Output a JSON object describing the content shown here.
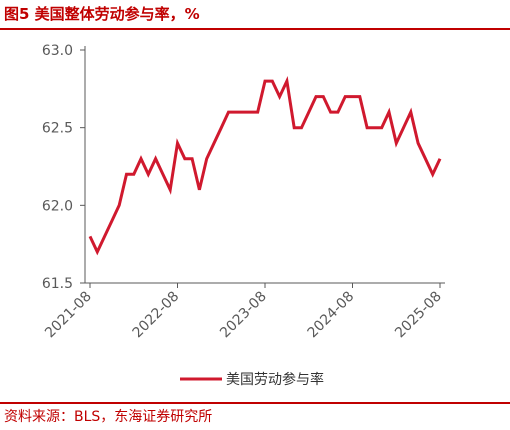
{
  "header": {
    "title": "图5  美国整体劳动参与率，%"
  },
  "footer": {
    "source": "资料来源：BLS，东海证券研究所"
  },
  "colors": {
    "accent": "#c00000",
    "series": "#d0192e",
    "axis": "#595959"
  },
  "chart_data": {
    "type": "line",
    "title": "图5  美国整体劳动参与率，%",
    "xlabel": "",
    "ylabel": "",
    "ylim": [
      61.5,
      63.0
    ],
    "yticks": [
      61.5,
      62.0,
      62.5,
      63.0
    ],
    "ytick_labels": [
      "61.5",
      "62.0",
      "62.5",
      "63.0"
    ],
    "xtick_labels": [
      "2021-08",
      "2022-08",
      "2023-08",
      "2024-08",
      "2025-08"
    ],
    "grid": false,
    "legend_position": "bottom-center",
    "series": [
      {
        "name": "美国劳动参与率",
        "x": [
          "2021-08",
          "2021-09",
          "2021-10",
          "2021-11",
          "2021-12",
          "2022-01",
          "2022-02",
          "2022-03",
          "2022-04",
          "2022-05",
          "2022-06",
          "2022-07",
          "2022-08",
          "2022-09",
          "2022-10",
          "2022-11",
          "2022-12",
          "2023-01",
          "2023-02",
          "2023-03",
          "2023-04",
          "2023-05",
          "2023-06",
          "2023-07",
          "2023-08",
          "2023-09",
          "2023-10",
          "2023-11",
          "2023-12",
          "2024-01",
          "2024-02",
          "2024-03",
          "2024-04",
          "2024-05",
          "2024-06",
          "2024-07",
          "2024-08",
          "2024-09",
          "2024-10",
          "2024-11",
          "2024-12",
          "2025-01",
          "2025-02",
          "2025-03",
          "2025-04",
          "2025-05",
          "2025-06",
          "2025-07",
          "2025-08"
        ],
        "values": [
          61.8,
          61.7,
          61.8,
          61.9,
          62.0,
          62.2,
          62.2,
          62.3,
          62.2,
          62.3,
          62.2,
          62.1,
          62.4,
          62.3,
          62.3,
          62.1,
          62.3,
          62.4,
          62.5,
          62.6,
          62.6,
          62.6,
          62.6,
          62.6,
          62.8,
          62.8,
          62.7,
          62.8,
          62.5,
          62.5,
          62.6,
          62.7,
          62.7,
          62.6,
          62.6,
          62.7,
          62.7,
          62.7,
          62.5,
          62.5,
          62.5,
          62.6,
          62.4,
          62.5,
          62.6,
          62.4,
          62.3,
          62.2,
          62.3
        ]
      }
    ]
  }
}
